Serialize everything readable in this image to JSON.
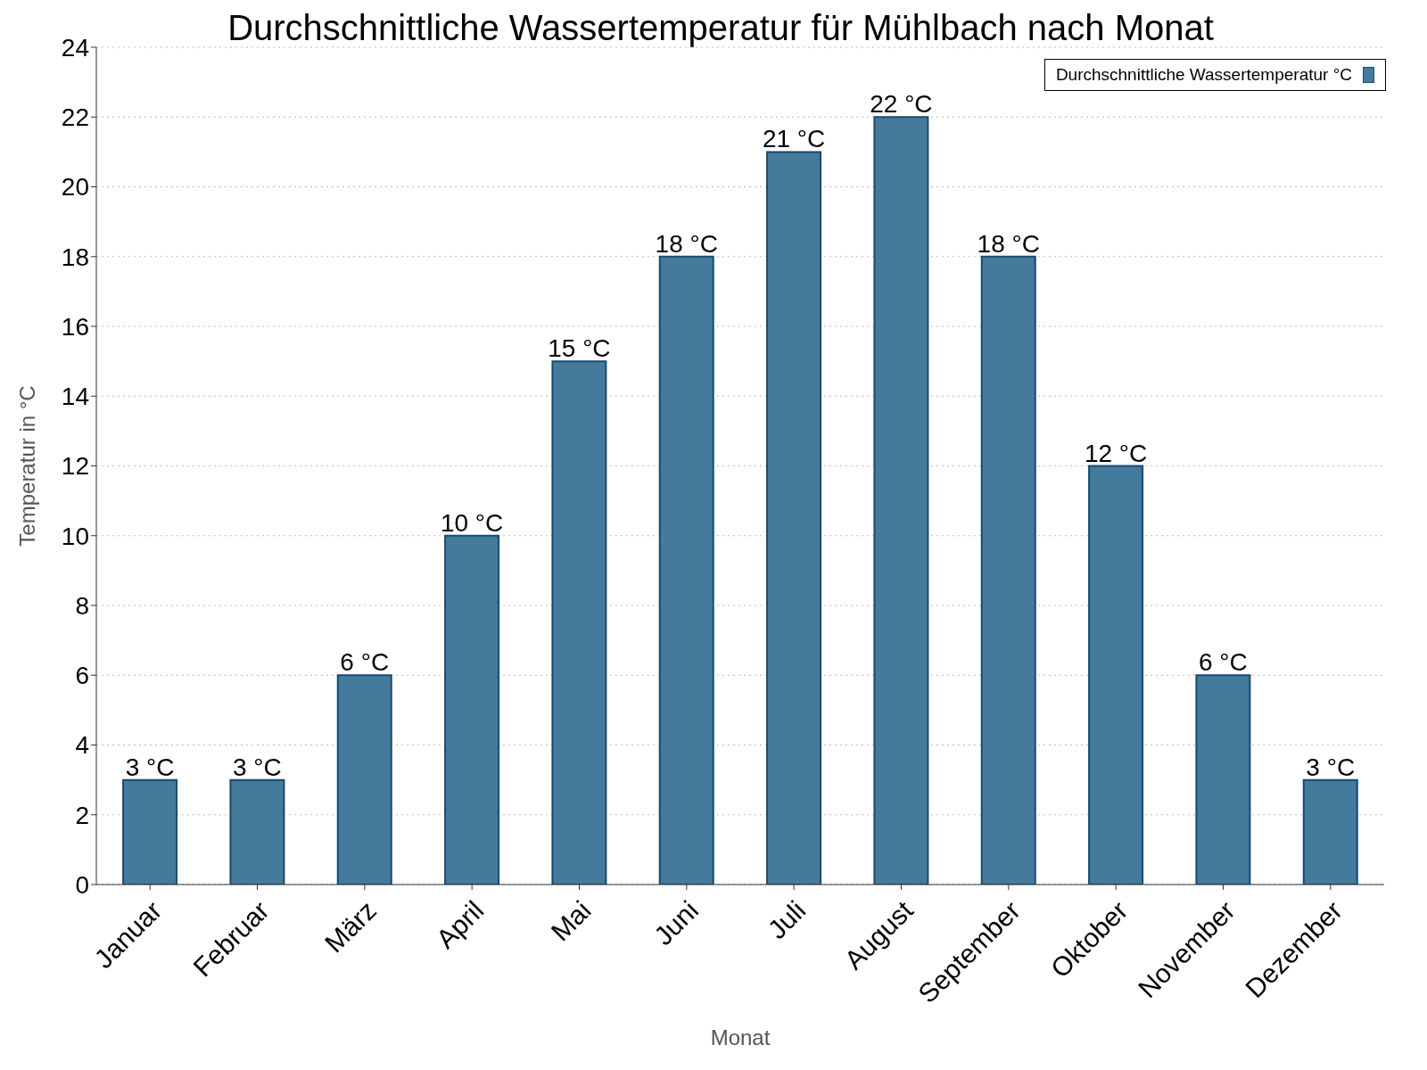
{
  "chart_data": {
    "type": "bar",
    "title": "Durchschnittliche Wassertemperatur für Mühlbach nach Monat",
    "xlabel": "Monat",
    "ylabel": "Temperatur in °C",
    "categories": [
      "Januar",
      "Februar",
      "März",
      "April",
      "Mai",
      "Juni",
      "Juli",
      "August",
      "September",
      "Oktober",
      "November",
      "Dezember"
    ],
    "series": [
      {
        "name": "Durchschnittliche Wassertemperatur °C",
        "color": "#447a9c",
        "values": [
          3,
          3,
          6,
          10,
          15,
          18,
          21,
          22,
          18,
          12,
          6,
          3
        ],
        "value_labels": [
          "3 °C",
          "3 °C",
          "6 °C",
          "10 °C",
          "15 °C",
          "18 °C",
          "21 °C",
          "22 °C",
          "18 °C",
          "12 °C",
          "6 °C",
          "3 °C"
        ]
      }
    ],
    "ylim": [
      0,
      24
    ],
    "yticks": [
      0,
      2,
      4,
      6,
      8,
      10,
      12,
      14,
      16,
      18,
      20,
      22,
      24
    ],
    "grid": "y",
    "legend": "top right"
  }
}
